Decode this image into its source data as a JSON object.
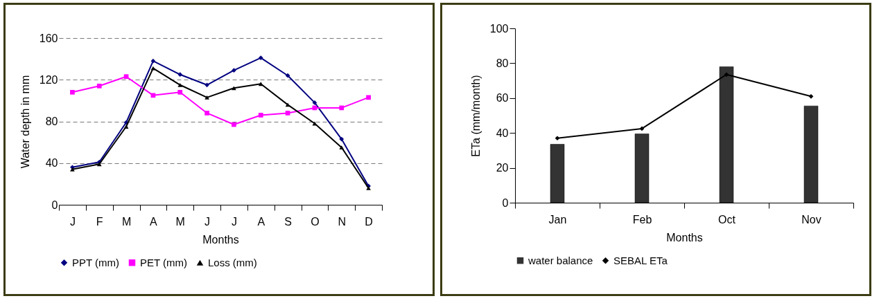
{
  "chart_data": [
    {
      "type": "line",
      "xlabel": "Months",
      "ylabel": "Water depth in mm",
      "categories": [
        "J",
        "F",
        "M",
        "A",
        "M",
        "J",
        "J",
        "A",
        "S",
        "O",
        "N",
        "D"
      ],
      "series": [
        {
          "name": "PPT (mm)",
          "color": "#000080",
          "marker": "diamond",
          "values": [
            36,
            41,
            79,
            138,
            125,
            115,
            129,
            141,
            124,
            98,
            63,
            18
          ]
        },
        {
          "name": "PET (mm)",
          "color": "#ff00ff",
          "marker": "square",
          "values": [
            108,
            114,
            123,
            105,
            108,
            88,
            77,
            86,
            88,
            93,
            93,
            103
          ]
        },
        {
          "name": "Loss (mm)",
          "color": "#000000",
          "marker": "triangle",
          "values": [
            34,
            39,
            75,
            131,
            115,
            103,
            112,
            116,
            96,
            78,
            55,
            16
          ]
        }
      ],
      "ylim": [
        0,
        160
      ],
      "yticks": [
        0,
        40,
        80,
        120,
        160
      ],
      "grid": "y",
      "legend": "bottom",
      "line_style": "solid"
    },
    {
      "type": "bar",
      "xlabel": "Months",
      "ylabel": "ETa (mm/month)",
      "categories": [
        "Jan",
        "Feb",
        "Oct",
        "Nov"
      ],
      "series": [
        {
          "name": "water balance",
          "color": "#333333",
          "values": [
            33.5,
            39.5,
            78,
            55.5
          ]
        },
        {
          "name": "SEBAL ETa",
          "type": "line",
          "color": "#000000",
          "marker": "diamond",
          "values": [
            37,
            42.5,
            73.5,
            61
          ]
        }
      ],
      "ylim": [
        0,
        100
      ],
      "yticks": [
        0,
        20,
        40,
        60,
        80,
        100
      ],
      "grid": false,
      "legend": "bottom",
      "line_style": "solid"
    }
  ]
}
